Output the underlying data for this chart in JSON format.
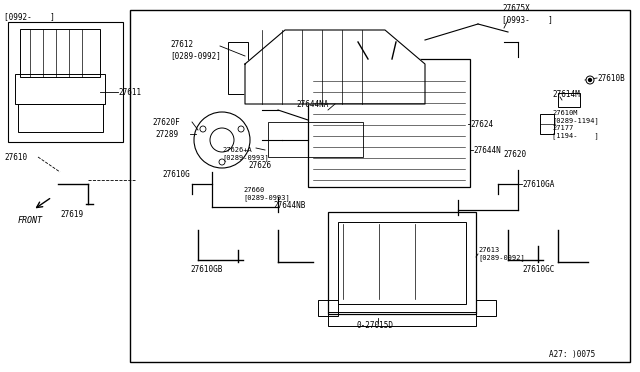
{
  "bg_color": "#ffffff",
  "border_color": "#000000",
  "line_color": "#000000",
  "text_color": "#000000",
  "fig_width": 6.4,
  "fig_height": 3.72,
  "part_number_ref": "A27: )0075",
  "labels": {
    "top_left_bracket": "[0992-    ]",
    "part_27611": "27611",
    "part_27610": "27610",
    "part_27619": "27619",
    "front_label": "FRONT",
    "part_27612": "27612\n[0289-0992]",
    "part_27675X": "27675X\n[0993-    ]",
    "part_27614M": "27614M",
    "part_27610B": "27610B",
    "part_27610M": "27610M\n[0289-1194]",
    "part_27177": "27177\n[1194-    ]",
    "part_27620F": "27620F",
    "part_27289": "27289",
    "part_27644NA": "27644NA",
    "part_27624": "27624",
    "part_27620": "27620",
    "part_27610G": "27610G",
    "part_27626A": "27626+A\n[0289-0993]",
    "part_27626": "27626",
    "part_27644N": "27644N",
    "part_27610GA": "27610GA",
    "part_27660": "27660\n[0289-0993]",
    "part_27644NB": "27644NB",
    "part_27610GC": "27610GC",
    "part_27610GB": "27610GB",
    "part_27613": "27613\n[0289-0992]",
    "part_270150": "0-27015D"
  }
}
